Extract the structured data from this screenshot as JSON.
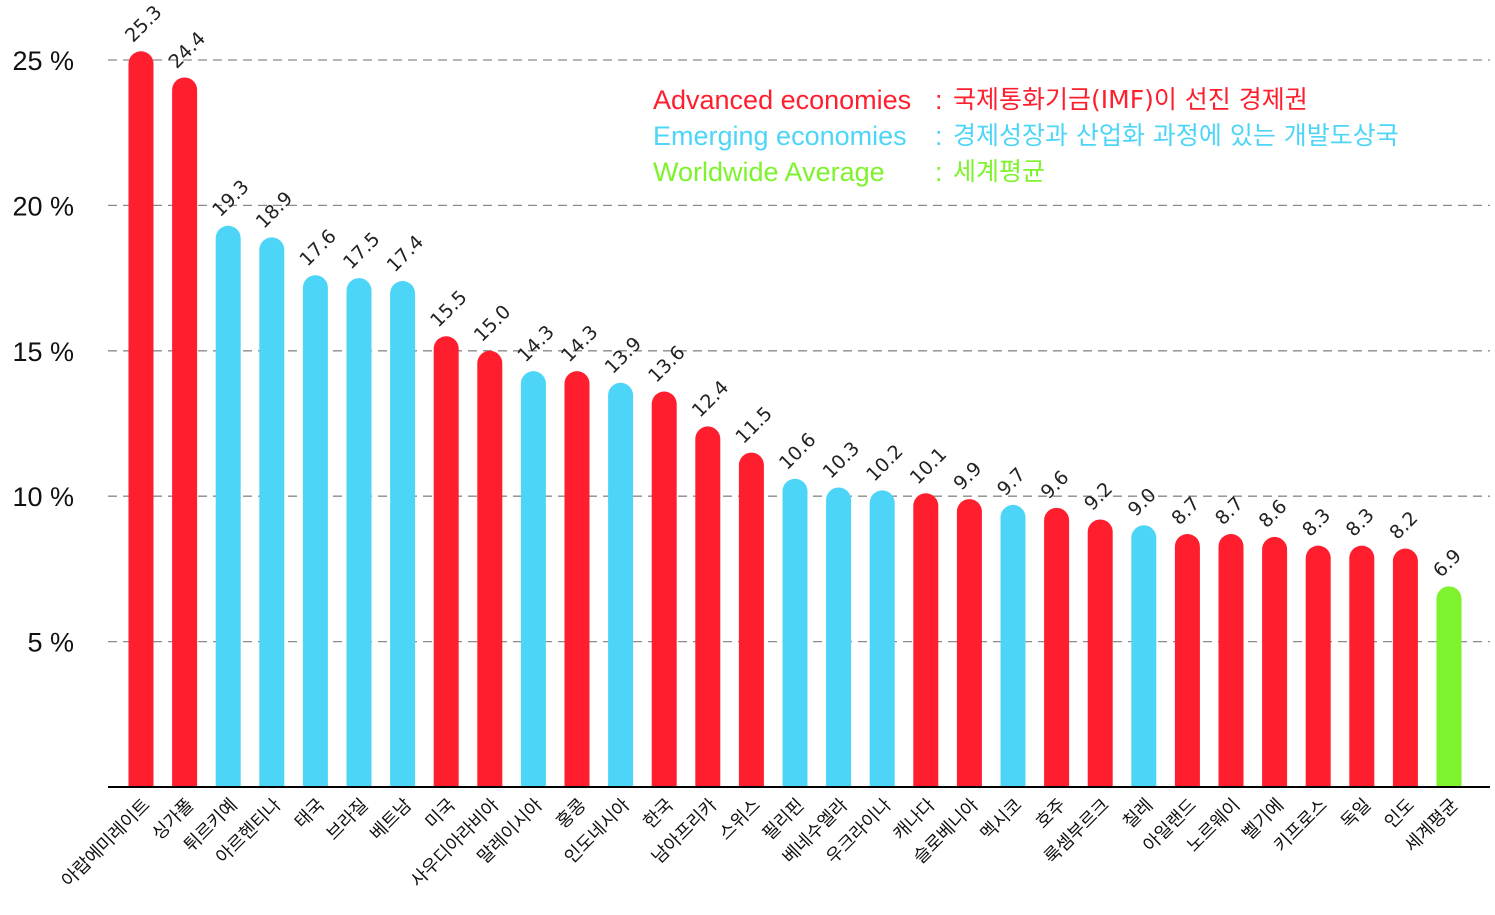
{
  "chart_data": {
    "type": "bar",
    "ylim": [
      0,
      25
    ],
    "yticks": [
      5,
      10,
      15,
      20,
      25
    ],
    "ytick_labels": [
      "5 %",
      "10 %",
      "15 %",
      "20 %",
      "25 %"
    ],
    "grid": "horizontal dashed",
    "categories": [
      "아랍에미레이트",
      "싱가폴",
      "튀르키예",
      "아르헨티나",
      "태국",
      "브라질",
      "베트남",
      "미국",
      "사우디아라비아",
      "말레이시아",
      "홍콩",
      "인도네시아",
      "한국",
      "남아프리카",
      "스위스",
      "필리핀",
      "베네수엘라",
      "우크라이나",
      "캐나다",
      "슬로베니아",
      "멕시코",
      "호주",
      "룩셈부르크",
      "칠레",
      "아일랜드",
      "노르웨이",
      "벨기에",
      "키프로스",
      "독일",
      "인도",
      "세계평균"
    ],
    "values": [
      25.3,
      24.4,
      19.3,
      18.9,
      17.6,
      17.5,
      17.4,
      15.5,
      15.0,
      14.3,
      14.3,
      13.9,
      13.6,
      12.4,
      11.5,
      10.6,
      10.3,
      10.2,
      10.1,
      9.9,
      9.7,
      9.6,
      9.2,
      9.0,
      8.7,
      8.7,
      8.6,
      8.3,
      8.3,
      8.2,
      6.9
    ],
    "value_labels": [
      "25.3",
      "24.4",
      "19.3",
      "18.9",
      "17.6",
      "17.5",
      "17.4",
      "15.5",
      "15.0",
      "14.3",
      "14.3",
      "13.9",
      "13.6",
      "12.4",
      "11.5",
      "10.6",
      "10.3",
      "10.2",
      "10.1",
      "9.9",
      "9.7",
      "9.6",
      "9.2",
      "9.0",
      "8.7",
      "8.7",
      "8.6",
      "8.3",
      "8.3",
      "8.2",
      "6.9"
    ],
    "groups": [
      "advanced",
      "advanced",
      "emerging",
      "emerging",
      "emerging",
      "emerging",
      "emerging",
      "advanced",
      "advanced",
      "emerging",
      "advanced",
      "emerging",
      "advanced",
      "advanced",
      "advanced",
      "emerging",
      "emerging",
      "emerging",
      "advanced",
      "advanced",
      "emerging",
      "advanced",
      "advanced",
      "emerging",
      "advanced",
      "advanced",
      "advanced",
      "advanced",
      "advanced",
      "advanced",
      "world"
    ],
    "legend_position": "top-right"
  },
  "colors": {
    "advanced": "#ff1e2d",
    "emerging": "#4dd5f7",
    "world": "#7ef22c",
    "grid": "#8a8a8a",
    "axis": "#000000"
  },
  "legend": [
    {
      "key": "advanced",
      "name": "Advanced economies",
      "desc": "국제통화기금(IMF)이 선진 경제권"
    },
    {
      "key": "emerging",
      "name": "Emerging economies",
      "desc": "경제성장과 산업화 과정에 있는 개발도상국"
    },
    {
      "key": "world",
      "name": "Worldwide Average",
      "desc": "세계평균"
    }
  ],
  "legend_separator": ":"
}
